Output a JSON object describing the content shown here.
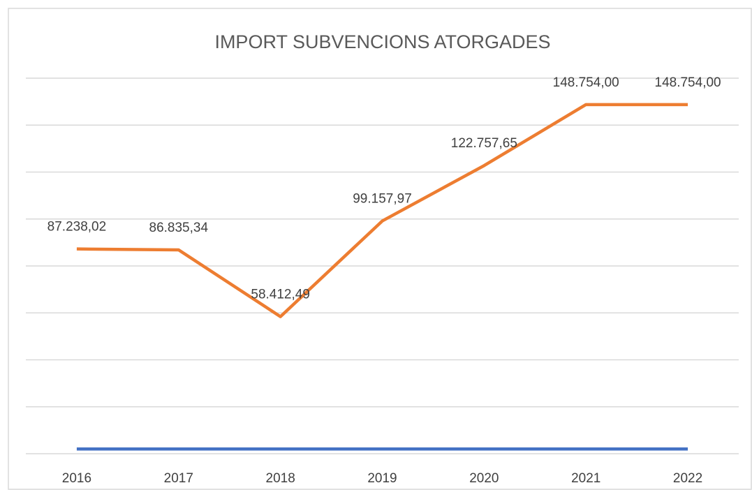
{
  "chart_data": {
    "type": "line",
    "title": "IMPORT SUBVENCIONS ATORGADES",
    "categories": [
      "2016",
      "2017",
      "2018",
      "2019",
      "2020",
      "2021",
      "2022"
    ],
    "series": [
      {
        "color": "#4472c4",
        "values": [
          2016,
          2017,
          2018,
          2019,
          2020,
          2021,
          2022
        ]
      },
      {
        "color": "#ed7d31",
        "values": [
          87238.02,
          86835.34,
          58412.49,
          99157.97,
          122757.65,
          148754.0,
          148754.0
        ],
        "value_labels": [
          "87.238,02",
          "86.835,34",
          "58.412,49",
          "99.157,97",
          "122.757,65",
          "148.754,00",
          "148.754,00"
        ]
      }
    ],
    "ylim": [
      0,
      160000
    ],
    "yticks": [
      0,
      20000,
      40000,
      60000,
      80000,
      100000,
      120000,
      140000,
      160000
    ],
    "grid": true
  }
}
